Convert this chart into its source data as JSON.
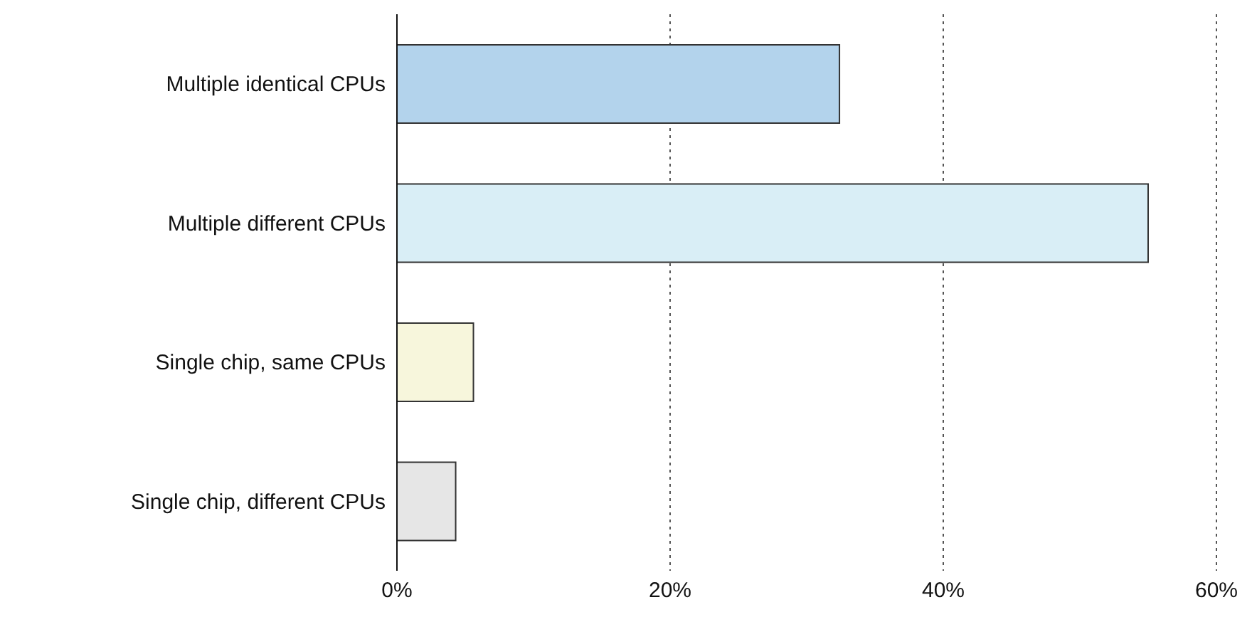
{
  "chart_data": {
    "type": "bar",
    "orientation": "horizontal",
    "categories": [
      "Multiple identical CPUs",
      "Multiple different CPUs",
      "Single chip, same CPUs",
      "Single chip, different CPUs"
    ],
    "values": [
      32.4,
      55,
      5.6,
      4.3
    ],
    "colors": [
      "#b3d3ec",
      "#d9eef6",
      "#f7f6dc",
      "#e6e6e6"
    ],
    "xlim": [
      0,
      60
    ],
    "xticks": [
      {
        "value": 0,
        "label": "0%"
      },
      {
        "value": 20,
        "label": "20%"
      },
      {
        "value": 40,
        "label": "40%"
      },
      {
        "value": 60,
        "label": "60%"
      }
    ],
    "grid": "x",
    "legend": false
  }
}
